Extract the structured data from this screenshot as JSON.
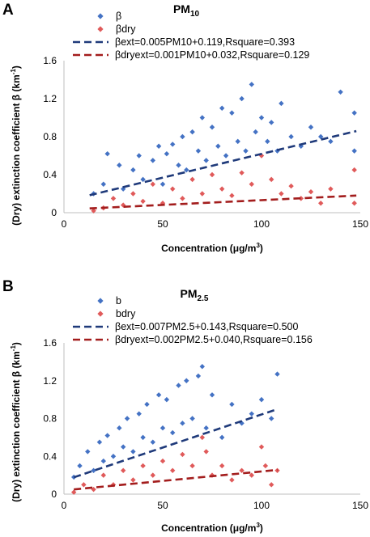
{
  "chart_data": [
    {
      "panel": "A",
      "type": "scatter",
      "title_main": "PM",
      "title_sub": "10",
      "xlabel_main": "Concentration (μg/m",
      "xlabel_sup": "3",
      "xlabel_end": ")",
      "ylabel_main": "(Dry) extinction coefficient β (km",
      "ylabel_sup": "-1",
      "ylabel_end": ")",
      "xlim": [
        0,
        150
      ],
      "ylim": [
        0,
        1.6
      ],
      "xticks": [
        0,
        50,
        100,
        150
      ],
      "yticks": [
        0,
        0.4,
        0.8,
        1.2,
        1.6
      ],
      "xtick_labels": [
        "0",
        "50",
        "100",
        "150"
      ],
      "ytick_labels": [
        "0",
        "0.4",
        "0.8",
        "1.2",
        "1.6"
      ],
      "legend_position": "top",
      "series": [
        {
          "name": "β",
          "kind": "points",
          "color": "#4472c4",
          "marker": "diamond",
          "values": [
            [
              15,
              0.2
            ],
            [
              20,
              0.3
            ],
            [
              22,
              0.62
            ],
            [
              28,
              0.5
            ],
            [
              30,
              0.25
            ],
            [
              35,
              0.45
            ],
            [
              38,
              0.6
            ],
            [
              40,
              0.35
            ],
            [
              45,
              0.55
            ],
            [
              48,
              0.7
            ],
            [
              50,
              0.3
            ],
            [
              52,
              0.62
            ],
            [
              55,
              0.72
            ],
            [
              58,
              0.5
            ],
            [
              60,
              0.8
            ],
            [
              62,
              0.45
            ],
            [
              65,
              0.85
            ],
            [
              68,
              0.65
            ],
            [
              70,
              1.0
            ],
            [
              72,
              0.55
            ],
            [
              75,
              0.9
            ],
            [
              78,
              0.7
            ],
            [
              80,
              1.1
            ],
            [
              82,
              0.6
            ],
            [
              85,
              1.05
            ],
            [
              88,
              0.75
            ],
            [
              90,
              1.2
            ],
            [
              92,
              0.65
            ],
            [
              95,
              1.35
            ],
            [
              97,
              0.85
            ],
            [
              100,
              1.0
            ],
            [
              103,
              0.75
            ],
            [
              105,
              0.95
            ],
            [
              108,
              0.65
            ],
            [
              110,
              1.15
            ],
            [
              115,
              0.8
            ],
            [
              120,
              0.7
            ],
            [
              125,
              0.9
            ],
            [
              130,
              0.8
            ],
            [
              135,
              0.75
            ],
            [
              140,
              1.27
            ],
            [
              147,
              1.05
            ],
            [
              147,
              0.65
            ]
          ]
        },
        {
          "name": "βdry",
          "kind": "points",
          "color": "#e05a5a",
          "marker": "diamond",
          "values": [
            [
              15,
              0.02
            ],
            [
              20,
              0.05
            ],
            [
              25,
              0.15
            ],
            [
              30,
              0.08
            ],
            [
              35,
              0.2
            ],
            [
              40,
              0.12
            ],
            [
              45,
              0.3
            ],
            [
              50,
              0.1
            ],
            [
              55,
              0.25
            ],
            [
              60,
              0.15
            ],
            [
              65,
              0.35
            ],
            [
              70,
              0.2
            ],
            [
              75,
              0.4
            ],
            [
              80,
              0.25
            ],
            [
              85,
              0.18
            ],
            [
              90,
              0.42
            ],
            [
              95,
              0.3
            ],
            [
              100,
              0.6
            ],
            [
              105,
              0.35
            ],
            [
              110,
              0.2
            ],
            [
              115,
              0.28
            ],
            [
              120,
              0.15
            ],
            [
              125,
              0.22
            ],
            [
              130,
              0.1
            ],
            [
              135,
              0.25
            ],
            [
              147,
              0.45
            ],
            [
              147,
              0.1
            ]
          ]
        },
        {
          "name": "βext=0.005PM10+0.119,Rsquare=0.393",
          "kind": "fit",
          "color": "#1f3a7a",
          "slope": 0.005,
          "intercept": 0.119,
          "x_range": [
            13,
            148
          ]
        },
        {
          "name": "βdryext=0.001PM10+0.032,Rsquare=0.129",
          "kind": "fit",
          "color": "#a31d1d",
          "slope": 0.001,
          "intercept": 0.032,
          "x_range": [
            13,
            148
          ]
        }
      ]
    },
    {
      "panel": "B",
      "type": "scatter",
      "title_main": "PM",
      "title_sub": "2.5",
      "xlabel_main": "Concentration (μg/m",
      "xlabel_sup": "3",
      "xlabel_end": ")",
      "ylabel_main": "(Dry) extinction coefficient β (km",
      "ylabel_sup": "-1",
      "ylabel_end": ")",
      "xlim": [
        0,
        150
      ],
      "ylim": [
        0,
        1.6
      ],
      "xticks": [
        0,
        50,
        100,
        150
      ],
      "yticks": [
        0,
        0.4,
        0.8,
        1.2,
        1.6
      ],
      "xtick_labels": [
        "0",
        "50",
        "100",
        "150"
      ],
      "ytick_labels": [
        "0",
        "0.4",
        "0.8",
        "1.2",
        "1.6"
      ],
      "legend_position": "top",
      "series": [
        {
          "name": "b",
          "kind": "points",
          "color": "#4472c4",
          "marker": "diamond",
          "values": [
            [
              5,
              0.18
            ],
            [
              8,
              0.3
            ],
            [
              12,
              0.45
            ],
            [
              15,
              0.25
            ],
            [
              18,
              0.55
            ],
            [
              20,
              0.35
            ],
            [
              22,
              0.62
            ],
            [
              25,
              0.4
            ],
            [
              28,
              0.7
            ],
            [
              30,
              0.5
            ],
            [
              32,
              0.8
            ],
            [
              35,
              0.45
            ],
            [
              38,
              0.85
            ],
            [
              40,
              0.6
            ],
            [
              42,
              0.95
            ],
            [
              45,
              0.55
            ],
            [
              48,
              1.05
            ],
            [
              50,
              0.7
            ],
            [
              52,
              1.0
            ],
            [
              55,
              0.65
            ],
            [
              58,
              1.15
            ],
            [
              60,
              0.75
            ],
            [
              62,
              1.2
            ],
            [
              65,
              0.8
            ],
            [
              68,
              1.25
            ],
            [
              70,
              1.35
            ],
            [
              72,
              0.7
            ],
            [
              75,
              1.05
            ],
            [
              80,
              0.6
            ],
            [
              85,
              0.95
            ],
            [
              90,
              0.75
            ],
            [
              95,
              0.85
            ],
            [
              100,
              1.0
            ],
            [
              105,
              0.8
            ],
            [
              108,
              1.27
            ]
          ]
        },
        {
          "name": "bdry",
          "kind": "points",
          "color": "#e05a5a",
          "marker": "diamond",
          "values": [
            [
              5,
              0.02
            ],
            [
              10,
              0.1
            ],
            [
              15,
              0.05
            ],
            [
              20,
              0.2
            ],
            [
              25,
              0.1
            ],
            [
              30,
              0.25
            ],
            [
              35,
              0.15
            ],
            [
              40,
              0.3
            ],
            [
              45,
              0.2
            ],
            [
              50,
              0.35
            ],
            [
              55,
              0.25
            ],
            [
              60,
              0.42
            ],
            [
              65,
              0.3
            ],
            [
              70,
              0.6
            ],
            [
              72,
              0.45
            ],
            [
              75,
              0.2
            ],
            [
              80,
              0.3
            ],
            [
              85,
              0.15
            ],
            [
              90,
              0.25
            ],
            [
              95,
              0.2
            ],
            [
              100,
              0.5
            ],
            [
              102,
              0.3
            ],
            [
              105,
              0.1
            ],
            [
              108,
              0.25
            ]
          ]
        },
        {
          "name": "βext=0.007PM2.5+0.143,Rsquare=0.500",
          "kind": "fit",
          "color": "#1f3a7a",
          "slope": 0.007,
          "intercept": 0.143,
          "x_range": [
            5,
            108
          ]
        },
        {
          "name": "βdryext=0.002PM2.5+0.040,Rsquare=0.156",
          "kind": "fit",
          "color": "#a31d1d",
          "slope": 0.002,
          "intercept": 0.04,
          "x_range": [
            5,
            108
          ]
        }
      ]
    }
  ]
}
